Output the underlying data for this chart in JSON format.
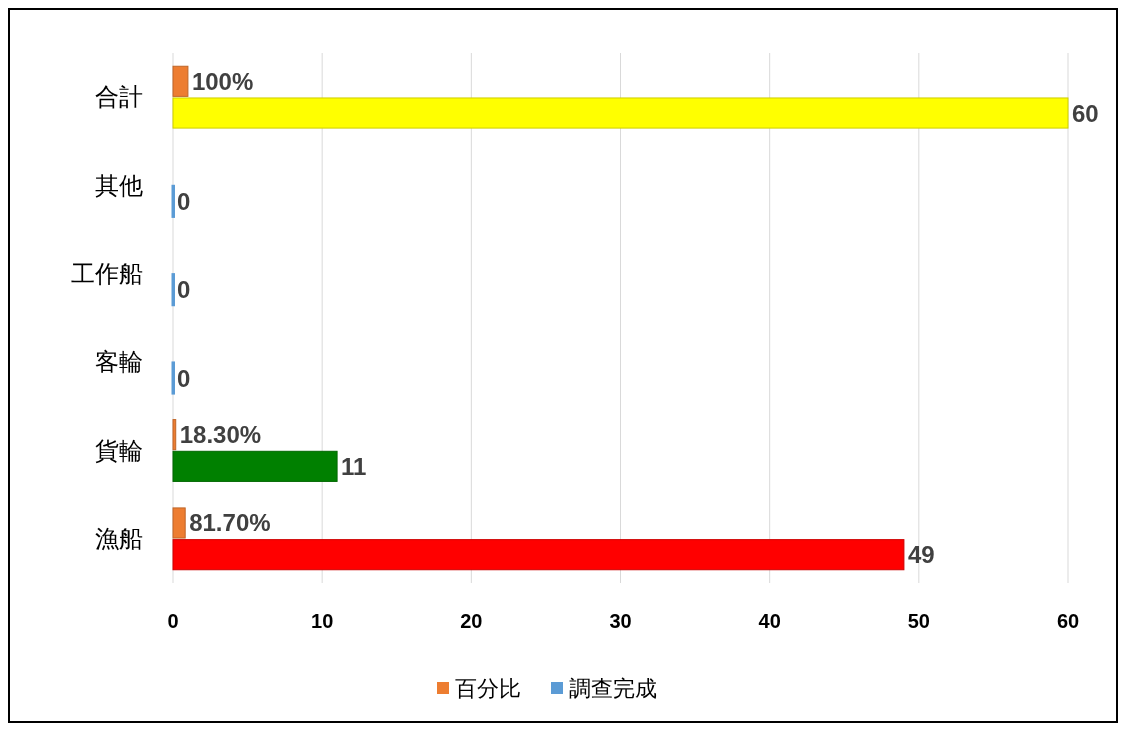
{
  "chart_data": {
    "type": "bar",
    "orientation": "horizontal",
    "categories": [
      "合計",
      "其他",
      "工作船",
      "客輪",
      "貨輪",
      "漁船"
    ],
    "series": [
      {
        "name": "百分比",
        "color": "#ed7d31",
        "values": [
          1,
          null,
          null,
          null,
          0.183,
          0.817
        ],
        "value_labels": [
          "100%",
          null,
          null,
          null,
          "18.30%",
          "81.70%"
        ]
      },
      {
        "name": "調查完成",
        "color": "#5b9bd5",
        "colors": [
          "#ffff00",
          "#5b9bd5",
          "#5b9bd5",
          "#5b9bd5",
          "#008000",
          "#ff0000"
        ],
        "values": [
          60,
          0,
          0,
          0,
          11,
          49
        ],
        "value_labels": [
          "60",
          "0",
          "0",
          "0",
          "11",
          "49"
        ]
      }
    ],
    "xlim": [
      0,
      60
    ],
    "xticks": [
      0,
      10,
      20,
      30,
      40,
      50,
      60
    ],
    "grid": "x",
    "legend": "bottom"
  }
}
